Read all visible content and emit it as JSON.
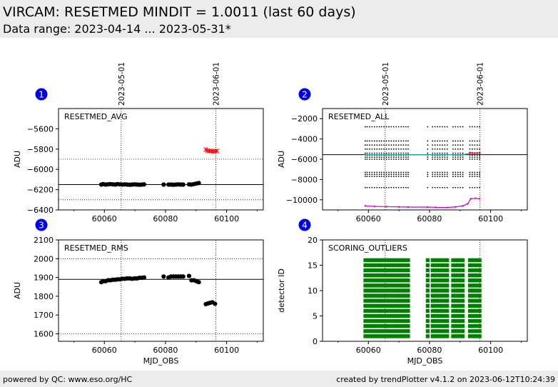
{
  "header": {
    "title": "VIRCAM: RESETMED MINDIT = 1.0011 (last 60 days)",
    "subtitle": "Data range: 2023-04-14 ... 2023-05-31*"
  },
  "footer": {
    "left": "powered by QC: www.eso.org/HC",
    "right": "created by trendPlotter v4.1.2 on 2023-06-12T10:24:39"
  },
  "colors": {
    "badge": "#0000ee",
    "points": "#000000",
    "outlier": "#ff0000",
    "magenta": "#cc00cc",
    "teal": "#1fa89a",
    "green": "#008000",
    "bg": "#ffffff"
  },
  "date_markers": [
    {
      "label": "2023-05-01",
      "mjd": 60065.5
    },
    {
      "label": "2023-06-01",
      "mjd": 60096.5
    }
  ],
  "chart_data": [
    {
      "id": 1,
      "badge": "1",
      "type": "scatter",
      "title": "RESETMED_AVG",
      "ylabel": "ADU",
      "xlabel": "",
      "xlim": [
        60045,
        60112
      ],
      "ylim": [
        -6400,
        -5400
      ],
      "yticks": [
        -6400,
        -6200,
        -6000,
        -5800,
        -5600
      ],
      "xticks": [
        60060,
        60080,
        60100
      ],
      "show_xtick_labels": true,
      "reference": -6150,
      "limits": [
        -6300,
        -5900
      ],
      "series": [
        {
          "name": "data",
          "color": "#000000",
          "marker": "dot",
          "x": [
            59.0,
            59.6,
            60.4,
            61.2,
            62.0,
            62.8,
            63.6,
            64.3,
            65.1,
            65.9,
            66.7,
            67.5,
            68.3,
            69.1,
            69.9,
            70.7,
            71.5,
            72.3,
            73.0,
            79.4,
            81.0,
            81.8,
            82.6,
            83.4,
            84.2,
            85.0,
            85.8,
            87.7,
            88.5,
            89.3,
            90.1,
            90.9
          ],
          "y": [
            -6150,
            -6145,
            -6150,
            -6148,
            -6145,
            -6148,
            -6150,
            -6145,
            -6148,
            -6150,
            -6148,
            -6150,
            -6152,
            -6150,
            -6148,
            -6150,
            -6152,
            -6150,
            -6148,
            -6150,
            -6150,
            -6150,
            -6152,
            -6150,
            -6148,
            -6150,
            -6150,
            -6148,
            -6150,
            -6145,
            -6140,
            -6135
          ]
        },
        {
          "name": "outliers",
          "color": "#ff0000",
          "marker": "x",
          "x": [
            93.2,
            93.8,
            94.4,
            95.0,
            95.6,
            96.2,
            96.8
          ],
          "y": [
            -5805,
            -5815,
            -5820,
            -5818,
            -5822,
            -5820,
            -5818
          ]
        }
      ]
    },
    {
      "id": 2,
      "badge": "2",
      "type": "scatter",
      "title": "RESETMED_ALL",
      "ylabel": "ADU",
      "xlabel": "",
      "xlim": [
        60045,
        60112
      ],
      "ylim": [
        -11000,
        -1000
      ],
      "yticks": [
        -10000,
        -8000,
        -6000,
        -4000,
        -2000
      ],
      "xticks": [
        60060,
        60080,
        60100
      ],
      "show_xtick_labels": true,
      "reference": -5550,
      "limits": [],
      "dot_levels": [
        -2800,
        -4200,
        -4600,
        -5000,
        -5400,
        -5600,
        -5800,
        -6000,
        -7300,
        -7500,
        -7700,
        -8800
      ],
      "dot_x": [
        59.0,
        59.6,
        60.4,
        61.2,
        62.0,
        62.8,
        63.6,
        64.3,
        65.1,
        65.9,
        66.7,
        67.5,
        68.3,
        69.1,
        69.9,
        70.7,
        71.5,
        72.3,
        73.0,
        79.4,
        81.0,
        81.8,
        82.6,
        83.4,
        84.2,
        85.0,
        85.8,
        87.7,
        88.5,
        89.3,
        90.1,
        90.9,
        93.2,
        94.0,
        94.8,
        95.6,
        96.4
      ],
      "series": [
        {
          "name": "minimum",
          "color": "#cc00cc",
          "marker": "line",
          "x": [
            59.0,
            62.0,
            66.0,
            70.0,
            73.0,
            79.4,
            82.0,
            85.8,
            88.5,
            90.9,
            92.5,
            93.5,
            95.0,
            96.4
          ],
          "y": [
            -10600,
            -10650,
            -10680,
            -10700,
            -10720,
            -10720,
            -10740,
            -10760,
            -10700,
            -10600,
            -10400,
            -9900,
            -9850,
            -9900
          ]
        },
        {
          "name": "median",
          "color": "#1fa89a",
          "marker": "line",
          "x": [
            59.0,
            66.0,
            73.0,
            79.4,
            85.8,
            90.9,
            93.5,
            96.4
          ],
          "y": [
            -5560,
            -5550,
            -5560,
            -5560,
            -5560,
            -5550,
            -5400,
            -5400
          ]
        },
        {
          "name": "outliers",
          "color": "#ff0000",
          "marker": "dot",
          "x": [
            93.2,
            94.0,
            94.8,
            95.6,
            96.4
          ],
          "y": [
            -5350,
            -5380,
            -5400,
            -5380,
            -5360
          ]
        }
      ]
    },
    {
      "id": 3,
      "badge": "3",
      "type": "scatter",
      "title": "RESETMED_RMS",
      "ylabel": "ADU",
      "xlabel": "MJD_OBS",
      "xlim": [
        60045,
        60112
      ],
      "ylim": [
        1560,
        2100
      ],
      "yticks": [
        1600,
        1700,
        1800,
        1900,
        2000,
        2100
      ],
      "xticks": [
        60060,
        60080,
        60100
      ],
      "show_xtick_labels": true,
      "reference": 1890,
      "limits": [
        1600,
        2000
      ],
      "series": [
        {
          "name": "data",
          "color": "#000000",
          "marker": "dot",
          "x": [
            59.0,
            59.6,
            60.4,
            61.2,
            62.0,
            62.8,
            63.6,
            64.3,
            65.1,
            65.9,
            66.7,
            67.5,
            68.3,
            69.1,
            69.9,
            70.7,
            71.5,
            72.3,
            73.0,
            79.4,
            81.0,
            81.8,
            82.6,
            83.4,
            84.2,
            85.0,
            85.8,
            87.7,
            88.5,
            89.3,
            90.1,
            90.9,
            93.2,
            93.9,
            94.6,
            95.3,
            96.2
          ],
          "y": [
            1875,
            1880,
            1880,
            1885,
            1885,
            1888,
            1888,
            1890,
            1890,
            1893,
            1893,
            1895,
            1895,
            1893,
            1895,
            1895,
            1898,
            1898,
            1900,
            1905,
            1900,
            1905,
            1905,
            1905,
            1905,
            1905,
            1905,
            1908,
            1885,
            1885,
            1880,
            1875,
            1758,
            1762,
            1765,
            1768,
            1760
          ]
        }
      ]
    },
    {
      "id": 4,
      "badge": "4",
      "type": "scatter",
      "title": "SCORING_OUTLIERS",
      "ylabel": "detector ID",
      "xlabel": "MJD_OBS",
      "xlim": [
        60045,
        60112
      ],
      "ylim": [
        0,
        20
      ],
      "yticks": [
        0,
        5,
        10,
        15,
        20
      ],
      "xticks": [
        60060,
        60080,
        60100
      ],
      "show_xtick_labels": true,
      "reference": null,
      "limits": [],
      "detector_ids": [
        1,
        2,
        3,
        4,
        5,
        6,
        7,
        8,
        9,
        10,
        11,
        12,
        13,
        14,
        15,
        16
      ],
      "series": [
        {
          "name": "outlier detectors",
          "color": "#008000",
          "marker": "bar",
          "x": [
            59.0,
            59.6,
            60.4,
            61.2,
            62.0,
            62.8,
            63.6,
            64.3,
            65.1,
            65.9,
            66.7,
            67.5,
            68.3,
            69.1,
            69.9,
            70.7,
            71.5,
            72.3,
            73.0,
            79.4,
            81.0,
            81.8,
            82.6,
            83.4,
            84.2,
            85.0,
            85.8,
            87.7,
            88.5,
            89.3,
            90.1,
            90.9,
            93.2,
            94.0,
            94.8,
            95.6,
            96.4
          ]
        }
      ]
    }
  ]
}
